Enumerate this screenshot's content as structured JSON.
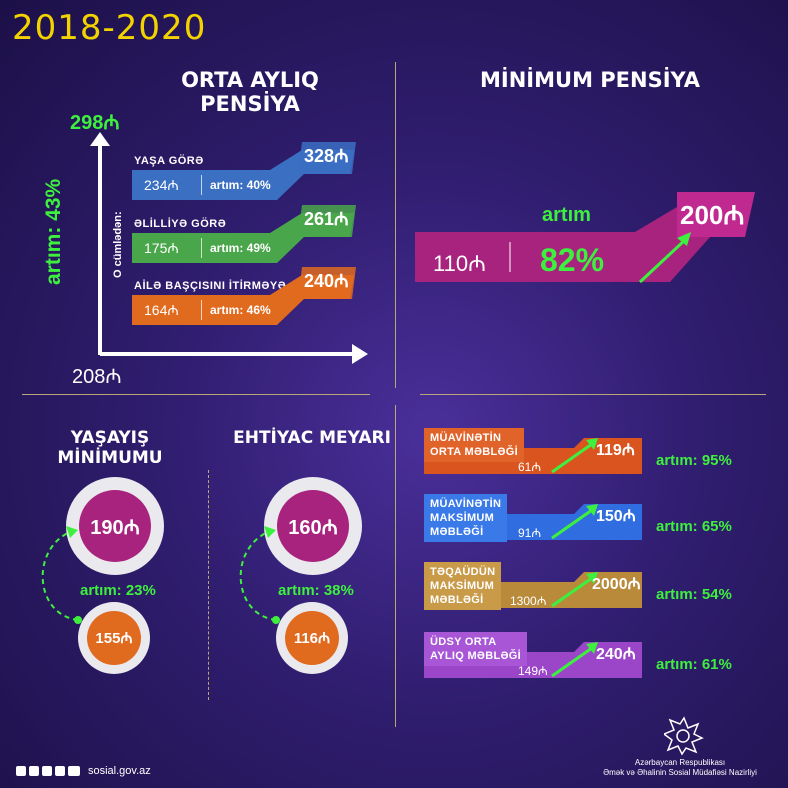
{
  "year": "2018-2020",
  "orta": {
    "title": "ORTA AYLIQ PENSİYA",
    "top_value": "298₼",
    "bottom_value": "208₼",
    "side_label": "artım: 43%",
    "sub_label": "O cümlədən:",
    "items": [
      {
        "label": "YAŞA GÖRƏ",
        "old": "234₼",
        "increase": "artım: 40%",
        "new": "328₼",
        "color": "#3b6fc2"
      },
      {
        "label": "ƏLİLLİYƏ GÖRƏ",
        "old": "175₼",
        "increase": "artım: 49%",
        "new": "261₼",
        "color": "#4aa64a"
      },
      {
        "label": "AİLƏ BAŞÇISINI İTİRMƏYƏ GÖRƏ",
        "old": "164₼",
        "increase": "artım: 46%",
        "new": "240₼",
        "color": "#e06a1e"
      }
    ]
  },
  "minimum": {
    "title": "MİNİMUM PENSİYA",
    "old": "110₼",
    "increase_label": "artım",
    "increase_pct": "82%",
    "new": "200₼",
    "color": "#a8237e"
  },
  "yasayis": {
    "title": "YAŞAYIŞ MİNİMUMU",
    "new": "190₼",
    "old": "155₼",
    "increase": "artım: 23%"
  },
  "ehtiyac": {
    "title": "EHTİYAC MEYARI",
    "new": "160₼",
    "old": "116₼",
    "increase": "artım: 38%"
  },
  "muavinet": [
    {
      "label": [
        "MÜAVİNƏTİN",
        "ORTA MƏBLƏĞİ"
      ],
      "old": "61₼",
      "new": "119₼",
      "pct": "artım: 95%",
      "color": "#d9541e",
      "label_color": "#e0632a"
    },
    {
      "label": [
        "MÜAVİNƏTİN",
        "MAKSİMUM",
        "MƏBLƏĞİ"
      ],
      "old": "91₼",
      "new": "150₼",
      "pct": "artım: 65%",
      "color": "#2f6de0",
      "label_color": "#3a7ae8"
    },
    {
      "label": [
        "TƏQAÜDÜN",
        "MAKSİMUM",
        "MƏBLƏĞİ"
      ],
      "old": "1300₼",
      "new": "2000₼",
      "pct": "artım: 54%",
      "color": "#b88a3a",
      "label_color": "#c99a48"
    },
    {
      "label": [
        "ÜDSY ORTA",
        "AYLIQ MƏBLƏĞİ"
      ],
      "old": "149₼",
      "new": "240₼",
      "pct": "artım: 61%",
      "color": "#9b46c8",
      "label_color": "#a855d6"
    }
  ],
  "footer": {
    "site": "sosial.gov.az",
    "org_line1": "Azərbaycan Respublikası",
    "org_line2": "Əmək və Əhalinin Sosial Müdafiəsi Nazirliyi"
  }
}
